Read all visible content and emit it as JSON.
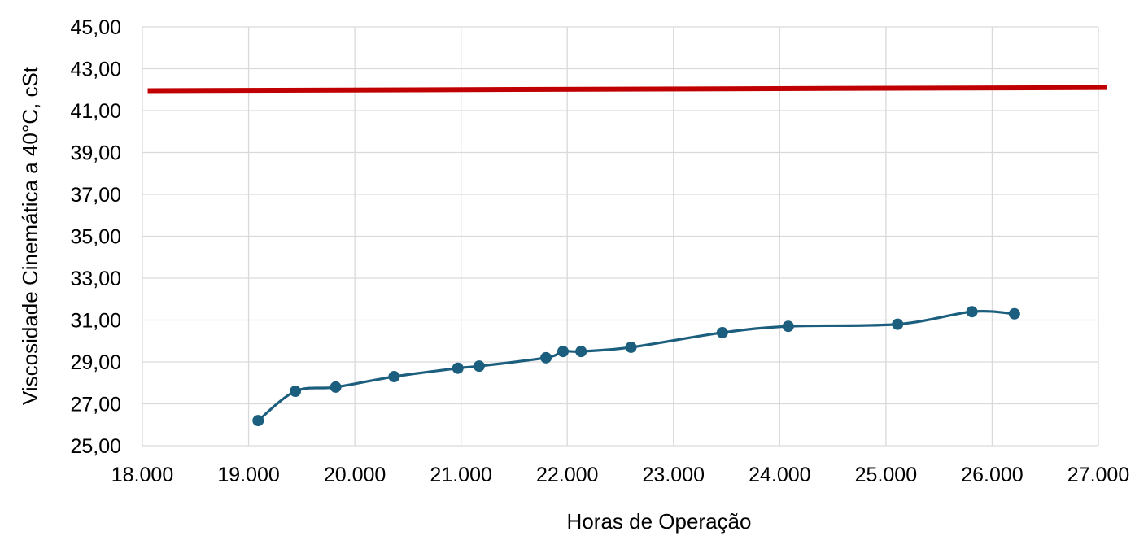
{
  "chart_data": {
    "type": "line",
    "title": "",
    "xlabel": "Horas de Operação",
    "ylabel": "Viscosidade Cinemática a 40°C, cSt",
    "xlim": [
      18000,
      27000
    ],
    "ylim": [
      25,
      45
    ],
    "x_ticks": [
      18000,
      19000,
      20000,
      21000,
      22000,
      23000,
      24000,
      25000,
      26000,
      27000
    ],
    "x_tick_labels": [
      "18.000",
      "19.000",
      "20.000",
      "21.000",
      "22.000",
      "23.000",
      "24.000",
      "25.000",
      "26.000",
      "27.000"
    ],
    "y_ticks": [
      25,
      27,
      29,
      31,
      33,
      35,
      37,
      39,
      41,
      43,
      45
    ],
    "y_tick_labels": [
      "25,00",
      "27,00",
      "29,00",
      "31,00",
      "33,00",
      "35,00",
      "37,00",
      "39,00",
      "41,00",
      "43,00",
      "45,00"
    ],
    "grid": true,
    "legend": "none",
    "series": [
      {
        "color": "#1b5e7e",
        "markers": true,
        "smooth": true,
        "x": [
          19090,
          19440,
          19820,
          20370,
          20970,
          21170,
          21800,
          21960,
          22130,
          22600,
          23460,
          24080,
          25110,
          25810,
          26210
        ],
        "y": [
          26.2,
          27.6,
          27.8,
          28.3,
          28.7,
          28.8,
          29.2,
          29.5,
          29.5,
          29.7,
          30.4,
          30.7,
          30.8,
          31.4,
          31.3
        ]
      },
      {
        "color": "#c00000",
        "markers": false,
        "smooth": false,
        "x": [
          18050,
          27080
        ],
        "y": [
          41.95,
          42.1
        ]
      }
    ]
  }
}
